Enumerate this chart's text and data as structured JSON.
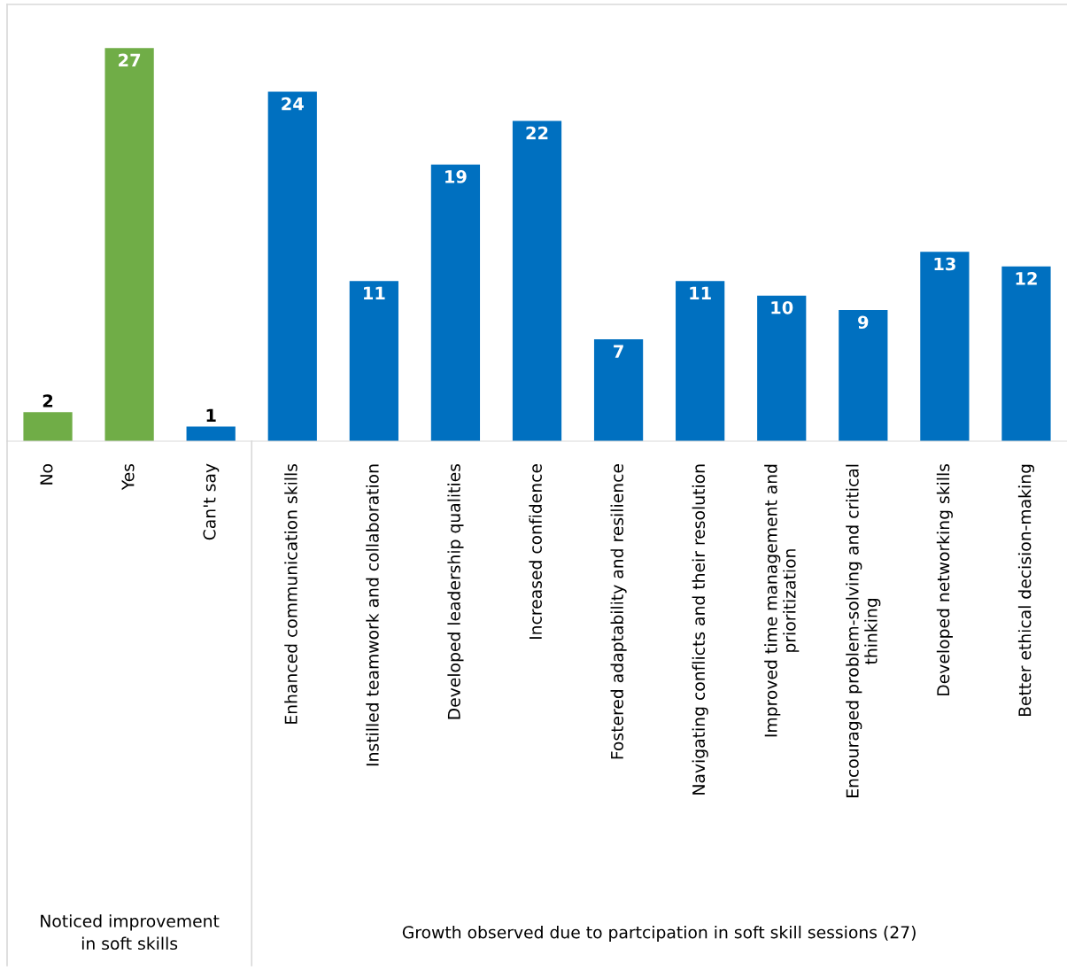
{
  "chart_data": {
    "type": "bar",
    "categories": [
      "No",
      "Yes",
      "Can't say",
      "Enhanced communication skills",
      "Instilled teamwork and collaboration",
      "Developed leadership qualities",
      "Increased confidence",
      "Fostered adaptability and resilience",
      "Navigating conflicts and their resolution",
      "Improved time management and\nprioritization",
      "Encouraged problem-solving and critical\nthinking",
      "Developed networking skills",
      "Better ethical decision-making"
    ],
    "values": [
      2,
      27,
      1,
      24,
      11,
      19,
      22,
      7,
      11,
      10,
      9,
      13,
      12
    ],
    "colors": [
      "#70ad47",
      "#70ad47",
      "#0070c0",
      "#0070c0",
      "#0070c0",
      "#0070c0",
      "#0070c0",
      "#0070c0",
      "#0070c0",
      "#0070c0",
      "#0070c0",
      "#0070c0",
      "#0070c0"
    ],
    "ylim": [
      0,
      30
    ],
    "data_labels": true,
    "grid": false,
    "legend": false,
    "tick_labels": "x",
    "annotations": [
      "Noticed improvement\nin soft skills",
      "Growth observed due to partcipation in soft skill sessions (27)"
    ]
  }
}
